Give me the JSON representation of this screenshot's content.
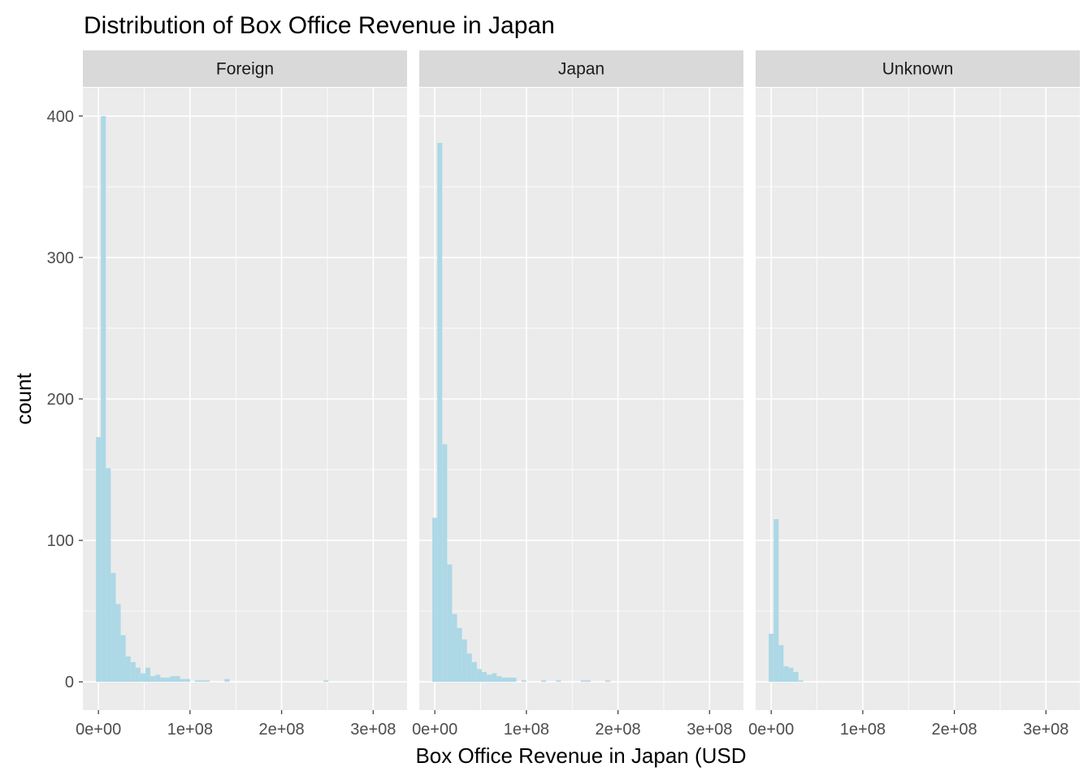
{
  "chart_data": {
    "type": "histogram",
    "title": "Distribution of Box Office Revenue in Japan",
    "xlabel": "Box Office Revenue in Japan (USD",
    "ylabel": "count",
    "facet_order": [
      "Foreign",
      "Japan",
      "Unknown"
    ],
    "xlim": [
      -17000000,
      337000000
    ],
    "ylim": [
      -20,
      420
    ],
    "x_ticks": [
      0,
      100000000,
      200000000,
      300000000
    ],
    "x_tick_labels": [
      "0e+00",
      "1e+08",
      "2e+08",
      "3e+08"
    ],
    "y_ticks": [
      0,
      100,
      200,
      300,
      400
    ],
    "y_tick_labels": [
      "0",
      "100",
      "200",
      "300",
      "400"
    ],
    "bin_width": 5400000,
    "first_bin_center": 0,
    "grid": true,
    "colors": {
      "bar_fill": "#add8e6",
      "panel_background": "#ebebeb",
      "grid_major": "#ffffff",
      "strip_background": "#d9d9d9"
    },
    "series": [
      {
        "facet": "Foreign",
        "counts": [
          173,
          400,
          151,
          77,
          55,
          33,
          18,
          14,
          10,
          6,
          10,
          4,
          5,
          3,
          3,
          4,
          4,
          2,
          2,
          0,
          1,
          1,
          1,
          0,
          0,
          0,
          2,
          0,
          0,
          0,
          0,
          0,
          0,
          0,
          0,
          0,
          0,
          0,
          0,
          0,
          0,
          0,
          0,
          0,
          0,
          0,
          1
        ]
      },
      {
        "facet": "Japan",
        "counts": [
          116,
          381,
          168,
          83,
          48,
          38,
          30,
          20,
          14,
          9,
          7,
          5,
          6,
          4,
          3,
          3,
          3,
          0,
          1,
          0,
          0,
          0,
          1,
          0,
          0,
          1,
          0,
          0,
          0,
          0,
          1,
          1,
          0,
          0,
          0,
          1,
          0,
          0,
          0,
          0,
          0,
          0,
          0,
          0,
          0,
          0,
          0,
          0,
          0,
          0,
          0,
          0,
          0,
          0,
          0,
          0,
          0,
          0,
          0,
          0,
          0,
          0,
          0,
          0,
          0,
          0,
          1
        ]
      },
      {
        "facet": "Unknown",
        "counts": [
          34,
          115,
          26,
          11,
          10,
          7,
          1
        ]
      }
    ]
  }
}
